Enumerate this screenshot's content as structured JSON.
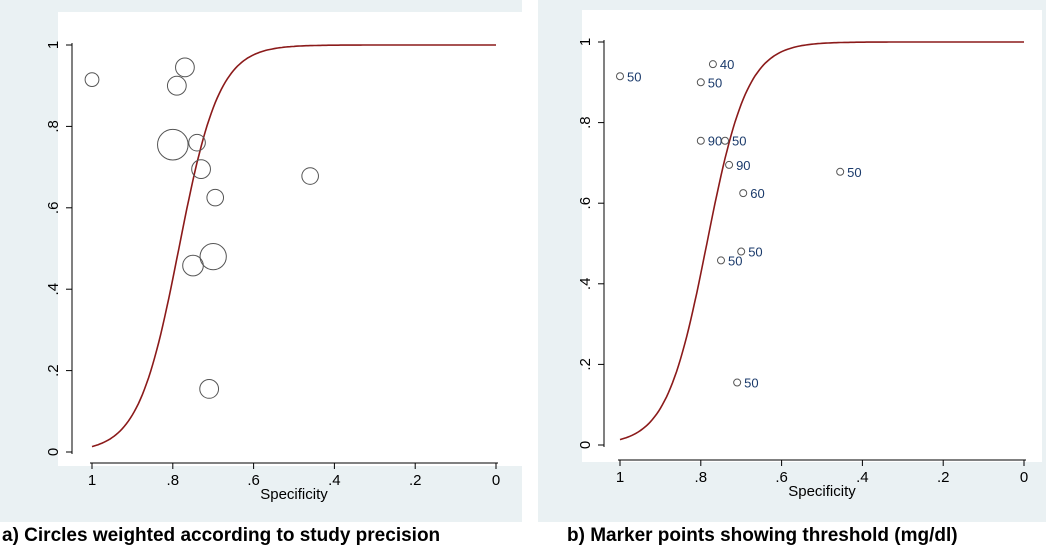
{
  "chart_data": [
    {
      "type": "scatter",
      "xlabel": "Specificity",
      "ylabel": "",
      "xlim": [
        1,
        0
      ],
      "ylim": [
        0,
        1
      ],
      "x_ticks": [
        "1",
        ".8",
        ".6",
        ".4",
        ".2",
        "0"
      ],
      "y_ticks": [
        "0",
        ".2",
        ".4",
        ".6",
        ".8",
        "1"
      ],
      "caption": "a) Circles weighted according to study precision",
      "curve_color": "#8b1a1a",
      "points": [
        {
          "x": 1.0,
          "y": 0.915,
          "weight": 1
        },
        {
          "x": 0.77,
          "y": 0.945,
          "weight": 3
        },
        {
          "x": 0.79,
          "y": 0.9,
          "weight": 3
        },
        {
          "x": 0.8,
          "y": 0.755,
          "weight": 12
        },
        {
          "x": 0.74,
          "y": 0.76,
          "weight": 2
        },
        {
          "x": 0.73,
          "y": 0.695,
          "weight": 3
        },
        {
          "x": 0.695,
          "y": 0.625,
          "weight": 2
        },
        {
          "x": 0.46,
          "y": 0.678,
          "weight": 2
        },
        {
          "x": 0.7,
          "y": 0.48,
          "weight": 8
        },
        {
          "x": 0.75,
          "y": 0.458,
          "weight": 4
        },
        {
          "x": 0.71,
          "y": 0.155,
          "weight": 3
        }
      ]
    },
    {
      "type": "scatter",
      "xlabel": "Specificity",
      "ylabel": "",
      "xlim": [
        1,
        0
      ],
      "ylim": [
        0,
        1
      ],
      "x_ticks": [
        "1",
        ".8",
        ".6",
        ".4",
        ".2",
        "0"
      ],
      "y_ticks": [
        "0",
        ".2",
        ".4",
        ".6",
        ".8",
        "1"
      ],
      "caption": "b) Marker points showing threshold (mg/dl)",
      "curve_color": "#8b1a1a",
      "points": [
        {
          "x": 1.0,
          "y": 0.915,
          "label": "50"
        },
        {
          "x": 0.77,
          "y": 0.945,
          "label": "40"
        },
        {
          "x": 0.8,
          "y": 0.9,
          "label": "50"
        },
        {
          "x": 0.8,
          "y": 0.755,
          "label": "90"
        },
        {
          "x": 0.74,
          "y": 0.755,
          "label": "50"
        },
        {
          "x": 0.73,
          "y": 0.695,
          "label": "90"
        },
        {
          "x": 0.695,
          "y": 0.625,
          "label": "60"
        },
        {
          "x": 0.455,
          "y": 0.678,
          "label": "50"
        },
        {
          "x": 0.7,
          "y": 0.48,
          "label": "50"
        },
        {
          "x": 0.75,
          "y": 0.458,
          "label": "50"
        },
        {
          "x": 0.71,
          "y": 0.155,
          "label": "50"
        }
      ]
    }
  ]
}
